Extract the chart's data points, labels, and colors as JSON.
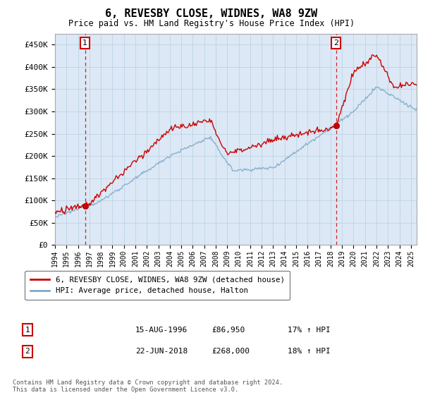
{
  "title": "6, REVESBY CLOSE, WIDNES, WA8 9ZW",
  "subtitle": "Price paid vs. HM Land Registry's House Price Index (HPI)",
  "ylabel_ticks": [
    "£0",
    "£50K",
    "£100K",
    "£150K",
    "£200K",
    "£250K",
    "£300K",
    "£350K",
    "£400K",
    "£450K"
  ],
  "ytick_values": [
    0,
    50000,
    100000,
    150000,
    200000,
    250000,
    300000,
    350000,
    400000,
    450000
  ],
  "ylim": [
    0,
    475000
  ],
  "xlim_start": 1994.0,
  "xlim_end": 2025.5,
  "legend_label_red": "6, REVESBY CLOSE, WIDNES, WA8 9ZW (detached house)",
  "legend_label_blue": "HPI: Average price, detached house, Halton",
  "sale1_label": "1",
  "sale1_date": "15-AUG-1996",
  "sale1_price": "£86,950",
  "sale1_hpi": "17% ↑ HPI",
  "sale1_x": 1996.62,
  "sale1_y": 86950,
  "sale2_label": "2",
  "sale2_date": "22-JUN-2018",
  "sale2_price": "£268,000",
  "sale2_hpi": "18% ↑ HPI",
  "sale2_x": 2018.47,
  "sale2_y": 268000,
  "footer": "Contains HM Land Registry data © Crown copyright and database right 2024.\nThis data is licensed under the Open Government Licence v3.0.",
  "plot_bg_color": "#dce8f5",
  "grid_color": "#b0c8e0",
  "red_line_color": "#cc0000",
  "blue_line_color": "#7faacc",
  "sale_marker_color": "#cc0000",
  "vline_color": "#cc0000",
  "fig_bg_color": "#ffffff",
  "xticks": [
    1994,
    1995,
    1996,
    1997,
    1998,
    1999,
    2000,
    2001,
    2002,
    2003,
    2004,
    2005,
    2006,
    2007,
    2008,
    2009,
    2010,
    2011,
    2012,
    2013,
    2014,
    2015,
    2016,
    2017,
    2018,
    2019,
    2020,
    2021,
    2022,
    2023,
    2024,
    2025
  ]
}
